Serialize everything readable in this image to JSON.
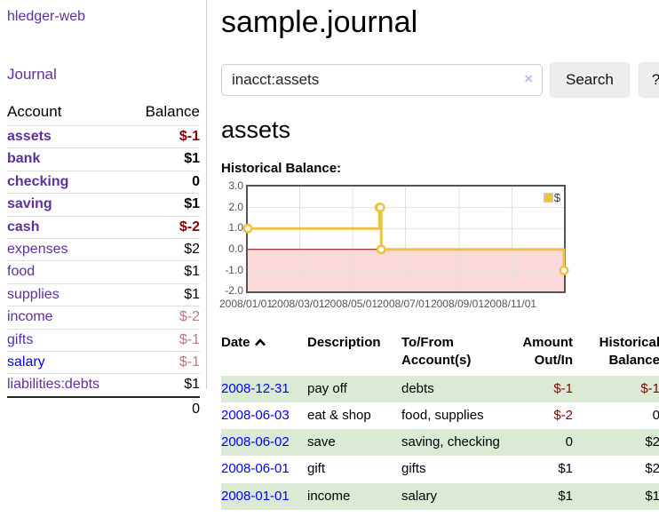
{
  "colors": {
    "accent_purple": "#5e2f9e",
    "link_blue": "#0000ee",
    "negative_strong": "#880000",
    "negative_muted": "#b97a7a",
    "row_green": "#dbead5",
    "series_gold": "#edc240",
    "negative_region_pink": "#fbd9d9",
    "zero_line_red": "#8b0000"
  },
  "sidebar": {
    "app_title": "hledger-web",
    "journal_link": "Journal",
    "accounts_table": {
      "header_account": "Account",
      "header_balance": "Balance",
      "rows": [
        {
          "name": "assets",
          "balance": "$-1"
        },
        {
          "name": "bank",
          "balance": "$1"
        },
        {
          "name": "checking",
          "balance": "0"
        },
        {
          "name": "saving",
          "balance": "$1"
        },
        {
          "name": "cash",
          "balance": "$-2"
        },
        {
          "name": "expenses",
          "balance": "$2"
        },
        {
          "name": "food",
          "balance": "$1"
        },
        {
          "name": "supplies",
          "balance": "$1"
        },
        {
          "name": "income",
          "balance": "$-2"
        },
        {
          "name": "gifts",
          "balance": "$-1"
        },
        {
          "name": "salary",
          "balance": "$-1"
        },
        {
          "name": "liabilities:debts",
          "balance": "$1"
        }
      ],
      "total": "0"
    }
  },
  "header": {
    "title": "sample.journal"
  },
  "search": {
    "value": "inacct:assets",
    "clear_icon": "×",
    "button_label": "Search",
    "help_label": "?"
  },
  "account_page": {
    "heading": "assets",
    "chart_label": "Historical Balance:"
  },
  "chart_data": {
    "type": "line",
    "title": "Historical Balance",
    "step": true,
    "x_type": "date",
    "x_range": [
      "2008-01-01",
      "2008-12-31"
    ],
    "ylim": [
      -2,
      3
    ],
    "y_ticks": [
      3,
      2,
      1,
      0,
      -1,
      -2
    ],
    "y_tick_labels": [
      "3.0",
      "2.0",
      "1.0",
      "0.0",
      "-1.0",
      "-2.0"
    ],
    "x_ticks": [
      "2008-01-01",
      "2008-03-01",
      "2008-05-01",
      "2008-07-01",
      "2008-09-01",
      "2008-11-01"
    ],
    "x_tick_labels": [
      "2008/01/01",
      "2008/03/01",
      "2008/05/01",
      "2008/07/01",
      "2008/09/01",
      "2008/11/01"
    ],
    "grid": true,
    "legend": {
      "position": "top-right",
      "entries": [
        {
          "label": "$",
          "color": "#edc240"
        }
      ]
    },
    "series": [
      {
        "name": "$",
        "color": "#edc240",
        "points": [
          [
            "2008-01-01",
            1
          ],
          [
            "2008-06-01",
            2
          ],
          [
            "2008-06-02",
            2
          ],
          [
            "2008-06-03",
            0
          ],
          [
            "2008-12-31",
            -1
          ]
        ]
      }
    ],
    "negative_region": {
      "from": 0,
      "to": -2,
      "fill": "#fbd9d9",
      "line_color": "#8b0000"
    }
  },
  "register_table": {
    "headers": {
      "date": "Date",
      "description": "Description",
      "accounts": "To/From\nAccount(s)",
      "amount": "Amount\nOut/In",
      "balance": "Historical\nBalance"
    },
    "rows": [
      {
        "date": "2008-12-31",
        "description": "pay off",
        "accounts": "debts",
        "amount": "$-1",
        "balance": "$-1"
      },
      {
        "date": "2008-06-03",
        "description": "eat & shop",
        "accounts": "food, supplies",
        "amount": "$-2",
        "balance": "0"
      },
      {
        "date": "2008-06-02",
        "description": "save",
        "accounts": "saving, checking",
        "amount": "0",
        "balance": "$2"
      },
      {
        "date": "2008-06-01",
        "description": "gift",
        "accounts": "gifts",
        "amount": "$1",
        "balance": "$2"
      },
      {
        "date": "2008-01-01",
        "description": "income",
        "accounts": "salary",
        "amount": "$1",
        "balance": "$1"
      }
    ]
  }
}
